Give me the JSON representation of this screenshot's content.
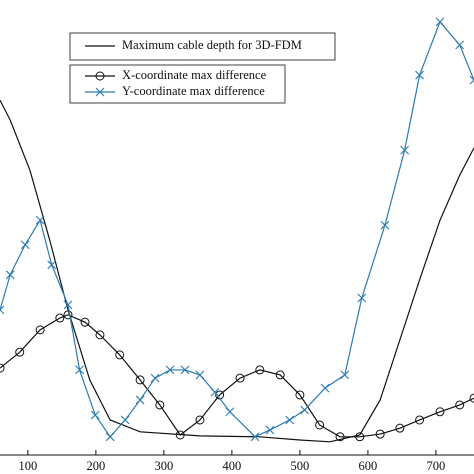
{
  "chart_data": {
    "type": "line",
    "xlim": [
      59,
      756
    ],
    "ylim": [
      0,
      100
    ],
    "xticks": [
      100,
      200,
      300,
      400,
      500,
      600,
      700
    ],
    "series": [
      {
        "name": "Maximum cable depth for 3D-FDM",
        "color": "#111111",
        "marker": "none",
        "x": [
          59,
          74,
          103,
          132,
          159,
          191,
          221,
          265,
          353,
          441,
          500,
          544,
          588,
          618,
          647,
          676,
          706,
          735,
          756
        ],
        "values": [
          78,
          73.6,
          62.6,
          47.3,
          31.9,
          16.5,
          7.7,
          5.1,
          4.2,
          4.0,
          3.3,
          2.9,
          4.4,
          12.1,
          25.3,
          38.5,
          51.6,
          61.5,
          67.5
        ]
      },
      {
        "name": "X-coordinate max difference",
        "color": "#111111",
        "marker": "circle",
        "x": [
          59,
          88,
          118,
          147,
          159,
          184,
          206,
          235,
          265,
          294,
          324,
          353,
          382,
          412,
          441,
          471,
          500,
          529,
          559,
          588,
          618,
          647,
          676,
          706,
          735,
          756
        ],
        "values": [
          19.1,
          22.6,
          27.5,
          30.1,
          30.8,
          29.2,
          26.4,
          22.0,
          16.5,
          11.0,
          4.4,
          7.7,
          13.2,
          16.9,
          18.7,
          17.6,
          13.2,
          6.6,
          4.0,
          4.0,
          4.6,
          5.9,
          7.7,
          9.5,
          11.0,
          12.5
        ]
      },
      {
        "name": "Y-coordinate max difference",
        "color": "#2b7bb0",
        "marker": "x",
        "x": [
          59,
          74,
          96,
          118,
          135,
          159,
          176,
          199,
          221,
          243,
          265,
          287,
          309,
          331,
          353,
          375,
          397,
          434,
          456,
          485,
          507,
          537,
          566,
          591,
          625,
          654,
          676,
          706,
          735,
          756
        ],
        "values": [
          31.9,
          39.6,
          46.2,
          51.6,
          41.8,
          33.0,
          18.7,
          8.8,
          4.0,
          7.7,
          12.1,
          16.9,
          18.7,
          18.7,
          17.6,
          13.8,
          9.5,
          4.0,
          5.5,
          7.7,
          9.9,
          14.7,
          17.6,
          34.5,
          50.5,
          67.0,
          83.5,
          95.2,
          90.1,
          82.4
        ]
      }
    ]
  }
}
